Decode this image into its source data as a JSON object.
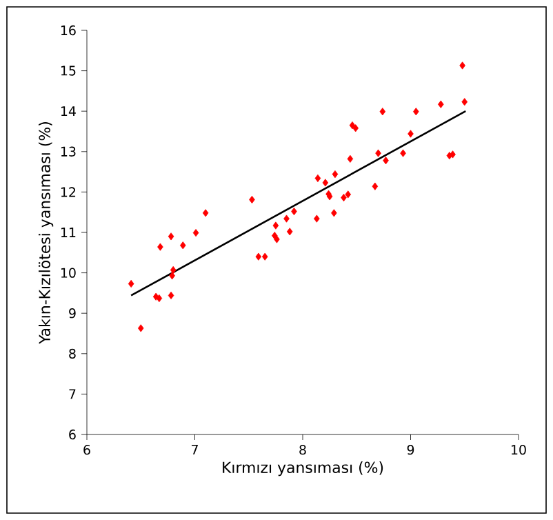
{
  "chart_data": {
    "type": "scatter",
    "xlabel": "Kırmızı yansıması (%)",
    "ylabel": "Yakın-Kızılötesi yansıması  (%)",
    "xlim": [
      6,
      10
    ],
    "ylim": [
      6,
      16
    ],
    "xticks": [
      6,
      7,
      8,
      9,
      10
    ],
    "yticks": [
      6,
      7,
      8,
      9,
      10,
      11,
      12,
      13,
      14,
      15,
      16
    ],
    "grid": false,
    "marker": "diamond",
    "series": [
      {
        "color": "#ff0000",
        "x": [
          6.41,
          6.5,
          6.64,
          6.67,
          6.68,
          6.78,
          6.78,
          6.79,
          6.8,
          6.89,
          7.01,
          7.1,
          7.53,
          7.59,
          7.65,
          7.74,
          7.75,
          7.76,
          7.85,
          7.88,
          7.92,
          8.13,
          8.14,
          8.21,
          8.24,
          8.25,
          8.29,
          8.3,
          8.38,
          8.42,
          8.44,
          8.46,
          8.49,
          8.67,
          8.7,
          8.74,
          8.77,
          8.93,
          9.0,
          9.05,
          9.28,
          9.36,
          9.39,
          9.48,
          9.5
        ],
        "values": [
          9.73,
          8.63,
          9.41,
          9.37,
          10.64,
          10.9,
          9.44,
          9.93,
          10.07,
          10.68,
          10.99,
          11.48,
          11.81,
          10.4,
          10.4,
          10.92,
          11.17,
          10.83,
          11.34,
          11.02,
          11.52,
          11.34,
          12.34,
          12.23,
          11.95,
          11.89,
          11.48,
          12.44,
          11.86,
          11.94,
          12.82,
          13.65,
          13.58,
          12.14,
          12.96,
          13.99,
          12.78,
          12.96,
          13.44,
          13.99,
          14.17,
          12.9,
          12.93,
          15.13,
          14.23
        ]
      },
      {
        "type": "line",
        "color": "#000000",
        "x": [
          6.41,
          9.51
        ],
        "values": [
          9.44,
          14.0
        ],
        "line_style": "solid",
        "marker": "none"
      }
    ]
  }
}
